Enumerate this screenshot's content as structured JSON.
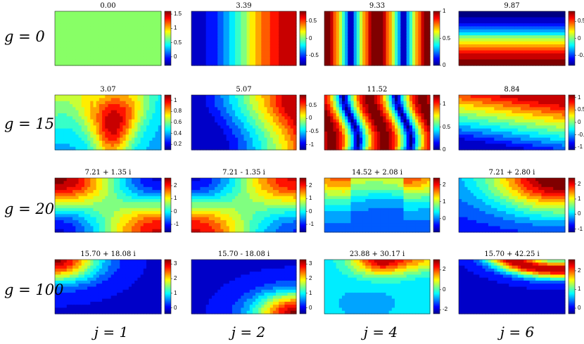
{
  "figure": {
    "row_labels": [
      "g = 0",
      "g = 15",
      "g = 20",
      "g = 100"
    ],
    "col_labels": [
      "j = 1",
      "j = 2",
      "j = 4",
      "j = 6"
    ],
    "colormap": "jet",
    "panels": [
      {
        "row": 0,
        "col": 0,
        "title": "0.00",
        "pattern": "uniform",
        "colorbar_ticks": [
          "1.5",
          "1",
          "0.5",
          "0"
        ],
        "colorbar_range": [
          -0.3,
          1.6
        ]
      },
      {
        "row": 0,
        "col": 1,
        "title": "3.39",
        "pattern": "vertical-gradient-left-to-right",
        "colorbar_ticks": [
          "0.5",
          "0",
          "-0.5"
        ],
        "colorbar_range": [
          -0.8,
          0.8
        ]
      },
      {
        "row": 0,
        "col": 2,
        "title": "9.33",
        "pattern": "vertical-stripes",
        "colorbar_ticks": [
          "1",
          "0.5",
          "0"
        ],
        "colorbar_range": [
          0,
          1
        ]
      },
      {
        "row": 0,
        "col": 3,
        "title": "9.87",
        "pattern": "horizontal-band",
        "colorbar_ticks": [
          "0.5",
          "0",
          "-0.5"
        ],
        "colorbar_range": [
          -0.8,
          0.8
        ]
      },
      {
        "row": 1,
        "col": 0,
        "title": "3.07",
        "pattern": "curved-band",
        "colorbar_ticks": [
          "1",
          "0.8",
          "0.6",
          "0.4",
          "0.2"
        ],
        "colorbar_range": [
          0.1,
          1.1
        ]
      },
      {
        "row": 1,
        "col": 1,
        "title": "5.07",
        "pattern": "curved-gradient",
        "colorbar_ticks": [
          "0.5",
          "0",
          "-0.5",
          "-1"
        ],
        "colorbar_range": [
          -1.2,
          0.9
        ]
      },
      {
        "row": 1,
        "col": 2,
        "title": "11.52",
        "pattern": "curved-stripes",
        "colorbar_ticks": [
          "1",
          "0.5",
          "0"
        ],
        "colorbar_range": [
          0,
          1.2
        ]
      },
      {
        "row": 1,
        "col": 3,
        "title": "8.84",
        "pattern": "diagonal-band",
        "colorbar_ticks": [
          "1",
          "0.5",
          "0",
          "-0.5",
          "-1"
        ],
        "colorbar_range": [
          -1.1,
          1.1
        ]
      },
      {
        "row": 2,
        "col": 0,
        "title": "7.21 + 1.35 i",
        "pattern": "saddle-a",
        "colorbar_ticks": [
          "2",
          "1",
          "0",
          "-1"
        ],
        "colorbar_range": [
          -1.6,
          2.6
        ]
      },
      {
        "row": 2,
        "col": 1,
        "title": "7.21 - 1.35 i",
        "pattern": "saddle-b",
        "colorbar_ticks": [
          "2",
          "1",
          "0",
          "-1"
        ],
        "colorbar_range": [
          -1.6,
          2.6
        ]
      },
      {
        "row": 2,
        "col": 2,
        "title": "14.52 + 2.08 i",
        "pattern": "arches",
        "colorbar_ticks": [
          "2",
          "1",
          "0"
        ],
        "colorbar_range": [
          -0.8,
          2.4
        ]
      },
      {
        "row": 2,
        "col": 3,
        "title": "7.21 + 2.80 i",
        "pattern": "corner-top-right",
        "colorbar_ticks": [
          "2",
          "1",
          "0",
          "-1"
        ],
        "colorbar_range": [
          -1.2,
          2.4
        ]
      },
      {
        "row": 3,
        "col": 0,
        "title": "15.70 + 18.08 i",
        "pattern": "corner-top-left",
        "colorbar_ticks": [
          "3",
          "2",
          "1",
          "0"
        ],
        "colorbar_range": [
          -0.4,
          3.3
        ]
      },
      {
        "row": 3,
        "col": 1,
        "title": "15.70 - 18.08 i",
        "pattern": "corner-bottom-right",
        "colorbar_ticks": [
          "3",
          "2",
          "1",
          "0"
        ],
        "colorbar_range": [
          -0.4,
          3.3
        ]
      },
      {
        "row": 3,
        "col": 2,
        "title": "23.88 + 30.17 i",
        "pattern": "top-peaks",
        "colorbar_ticks": [
          "2",
          "0",
          "-2"
        ],
        "colorbar_range": [
          -2.4,
          3.0
        ]
      },
      {
        "row": 3,
        "col": 3,
        "title": "15.70 + 42.25 i",
        "pattern": "top-right-arc",
        "colorbar_ticks": [
          "2",
          "1",
          "0"
        ],
        "colorbar_range": [
          -0.3,
          2.6
        ]
      }
    ]
  }
}
